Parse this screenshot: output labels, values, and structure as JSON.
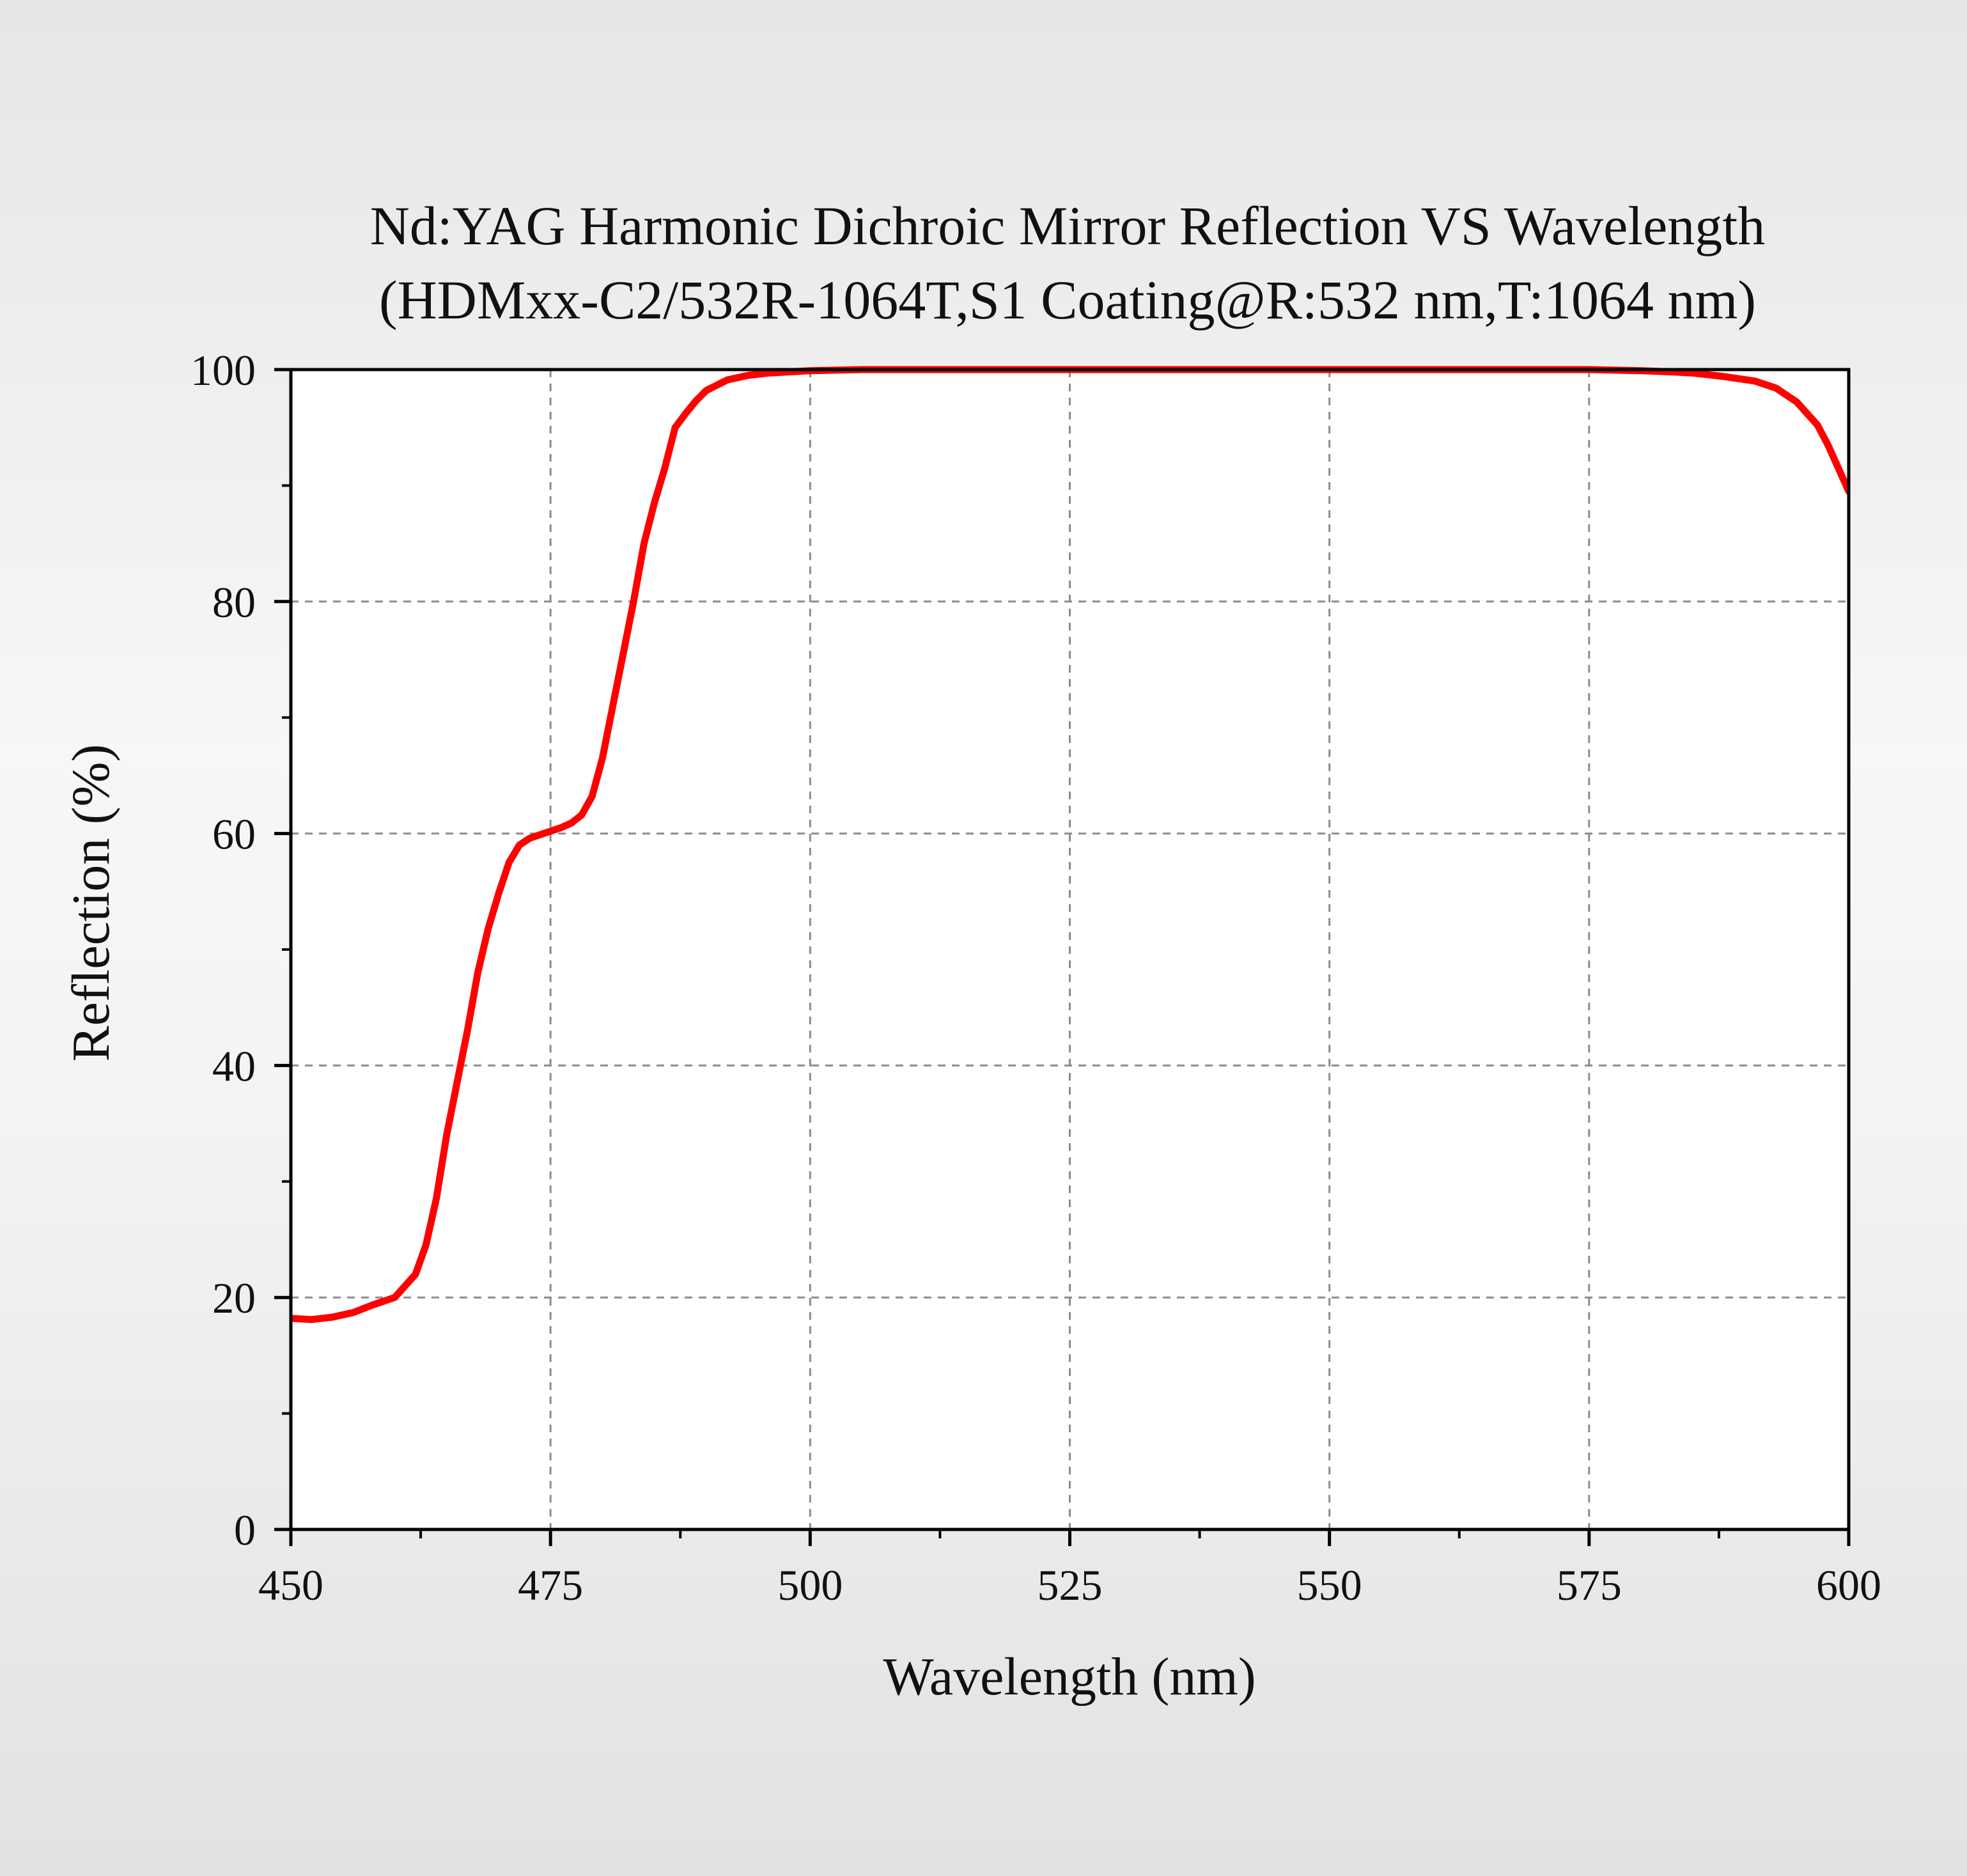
{
  "chart_data": {
    "type": "line",
    "title": "Nd:YAG Harmonic Dichroic Mirror Reflection VS Wavelength",
    "subtitle": "(HDMxx-C2/532R-1064T,S1 Coating@R:532 nm,T:1064 nm)",
    "xlabel": "Wavelength (nm)",
    "ylabel": "Reflection (%)",
    "xlim": [
      450,
      600
    ],
    "ylim": [
      0,
      100
    ],
    "x_ticks": [
      450,
      475,
      500,
      525,
      550,
      575,
      600
    ],
    "y_ticks": [
      0,
      20,
      40,
      60,
      80,
      100
    ],
    "grid": true,
    "legend": "none",
    "series": [
      {
        "color": "#ff0000",
        "x": [
          450,
          452,
          454,
          456,
          458,
          460,
          462,
          463,
          464,
          465,
          466,
          467,
          468,
          469,
          470,
          471,
          472,
          473,
          474,
          475,
          476,
          477,
          478,
          479,
          480,
          481,
          482,
          483,
          484,
          485,
          486,
          487,
          488,
          489,
          490,
          492,
          494,
          496,
          498,
          500,
          505,
          510,
          520,
          530,
          540,
          550,
          560,
          570,
          575,
          580,
          583,
          585,
          588,
          591,
          593,
          595,
          597,
          598,
          599,
          600
        ],
        "y": [
          18.2,
          18.1,
          18.3,
          18.7,
          19.4,
          20.0,
          22.0,
          24.5,
          28.5,
          34.0,
          38.5,
          43.0,
          48.0,
          51.8,
          54.8,
          57.5,
          59.0,
          59.6,
          59.9,
          60.2,
          60.5,
          60.9,
          61.6,
          63.2,
          66.5,
          71.0,
          75.5,
          80.0,
          85.0,
          88.5,
          91.5,
          95.0,
          96.2,
          97.3,
          98.2,
          99.1,
          99.5,
          99.7,
          99.8,
          99.9,
          100,
          100,
          100,
          100,
          100,
          100,
          100,
          100,
          100,
          99.9,
          99.8,
          99.7,
          99.4,
          99.0,
          98.4,
          97.2,
          95.2,
          93.5,
          91.5,
          89.5
        ]
      }
    ]
  }
}
